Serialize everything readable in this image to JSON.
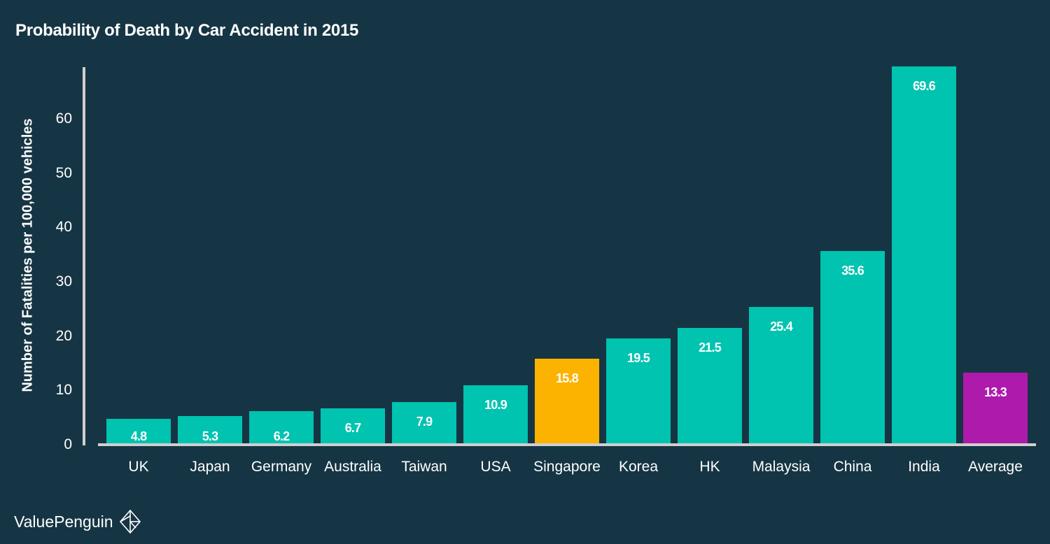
{
  "chart_data": {
    "type": "bar",
    "title": "Probability of Death by Car Accident in 2015",
    "xlabel": "",
    "ylabel": "Number of Fatalities per 100,000 vehicles",
    "ylim": [
      0,
      69.6
    ],
    "yticks": [
      0,
      10,
      20,
      30,
      40,
      50,
      60
    ],
    "grid": false,
    "legend": null,
    "categories": [
      "UK",
      "Japan",
      "Germany",
      "Australia",
      "Taiwan",
      "USA",
      "Singapore",
      "Korea",
      "HK",
      "Malaysia",
      "China",
      "India",
      "Average"
    ],
    "values": [
      4.8,
      5.3,
      6.2,
      6.7,
      7.9,
      10.9,
      15.8,
      19.5,
      21.5,
      25.4,
      35.6,
      69.6,
      13.3
    ],
    "data_labels": [
      "4.8",
      "5.3",
      "6.2",
      "6.7",
      "7.9",
      "10.9",
      "15.8",
      "19.5",
      "21.5",
      "25.4",
      "35.6",
      "69.6",
      "13.3"
    ],
    "bar_colors": [
      "#00c3b0",
      "#00c3b0",
      "#00c3b0",
      "#00c3b0",
      "#00c3b0",
      "#00c3b0",
      "#fbb300",
      "#00c3b0",
      "#00c3b0",
      "#00c3b0",
      "#00c3b0",
      "#00c3b0",
      "#ae1aac"
    ]
  },
  "colors": {
    "background": "#163544",
    "default_bar": "#00c3b0",
    "highlight_bar": "#fbb300",
    "average_bar": "#ae1aac",
    "axis": "#cfcfcf",
    "text": "#ffffff"
  },
  "brand": {
    "name": "ValuePenguin",
    "icon": "valuepenguin-logo-icon"
  }
}
